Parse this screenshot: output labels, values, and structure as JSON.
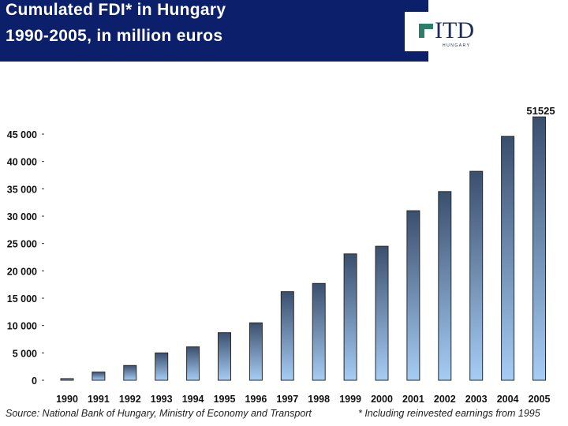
{
  "header": {
    "title_line1": "Cumulated FDI* in Hungary",
    "title_line2": "1990-2005, in million euros",
    "logo_text": "ITD",
    "logo_subtext": "HUNGARY",
    "background_color": "#0b1f6b"
  },
  "chart_data": {
    "type": "bar",
    "title": "Cumulated FDI* in Hungary 1990-2005, in million euros",
    "categories": [
      "1990",
      "1991",
      "1992",
      "1993",
      "1994",
      "1995",
      "1996",
      "1997",
      "1998",
      "1999",
      "2000",
      "2001",
      "2002",
      "2003",
      "2004",
      "2005"
    ],
    "values": [
      300,
      1500,
      2700,
      5000,
      6100,
      8700,
      10500,
      16200,
      17700,
      23100,
      24500,
      31000,
      34500,
      38200,
      44600,
      51525
    ],
    "value_labels": [
      "",
      "",
      "",
      "",
      "",
      "",
      "",
      "",
      "",
      "",
      "",
      "",
      "",
      "",
      "",
      "51525"
    ],
    "ylim": [
      0,
      45000
    ],
    "yticks": [
      0,
      5000,
      10000,
      15000,
      20000,
      25000,
      30000,
      35000,
      40000,
      45000
    ],
    "ytick_labels": [
      "0",
      "5 000",
      "10 000",
      "15 000",
      "20 000",
      "25 000",
      "30 000",
      "35 000",
      "40 000",
      "45 000"
    ],
    "xlabel": "",
    "ylabel": "",
    "grid": false,
    "bar_gradient_top": "#3b4f6e",
    "bar_gradient_bottom": "#a6cdf5"
  },
  "footer": {
    "source": "Source: National Bank of Hungary, Ministry of Economy and Transport",
    "note": "* Including reinvested earnings from 1995"
  }
}
